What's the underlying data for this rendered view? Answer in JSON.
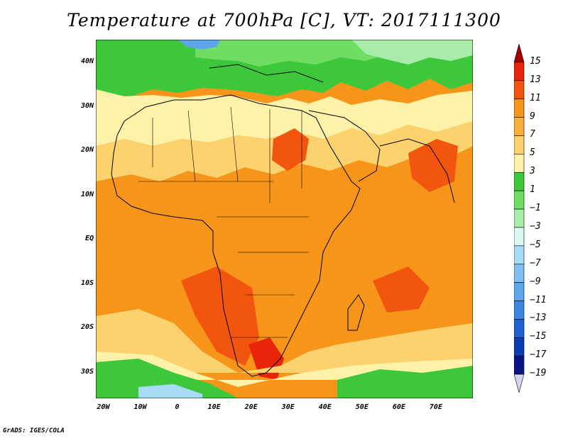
{
  "title": "Temperature at 700hPa [C], VT: 2017111300",
  "footer": "GrADS: IGES/COLA",
  "map": {
    "lat_labels": [
      "40N",
      "30N",
      "20N",
      "10N",
      "EQ",
      "10S",
      "20S",
      "30S"
    ],
    "lat_values": [
      40,
      30,
      20,
      10,
      0,
      -10,
      -20,
      -30
    ],
    "lon_labels": [
      "20W",
      "10W",
      "0",
      "10E",
      "20E",
      "30E",
      "40E",
      "50E",
      "60E",
      "70E"
    ],
    "lon_values": [
      -20,
      -10,
      0,
      10,
      20,
      30,
      40,
      50,
      60,
      70
    ],
    "lat_range": [
      -36,
      45
    ],
    "lon_range": [
      -22,
      80
    ]
  },
  "legend": {
    "labels": [
      "15",
      "13",
      "11",
      "9",
      "7",
      "5",
      "3",
      "1",
      "−1",
      "−3",
      "−5",
      "−7",
      "−9",
      "−11",
      "−13",
      "−15",
      "−17",
      "−19"
    ],
    "colors": [
      "#a50000",
      "#e8240a",
      "#f2560e",
      "#f6951a",
      "#f8b03a",
      "#fbd26e",
      "#fdf2a8",
      "#3cc83a",
      "#6fdc63",
      "#a8ecaa",
      "#dcf6f2",
      "#a8dcf6",
      "#7ec0f2",
      "#5ea6ec",
      "#3c86e2",
      "#1e62d2",
      "#0a3cb2",
      "#0a1482",
      "#d4d4f2"
    ]
  }
}
